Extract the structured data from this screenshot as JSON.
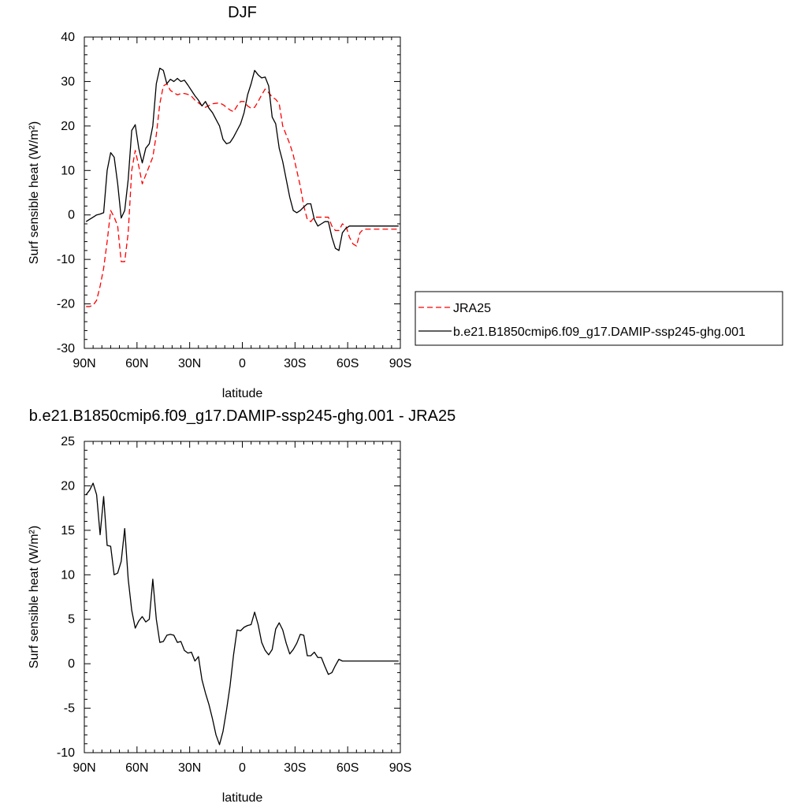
{
  "chart_data": [
    {
      "type": "line",
      "title": "DJF",
      "xlabel": "latitude",
      "ylabel": "Surf sensible heat (W/m²)",
      "xlim": [
        90,
        -90
      ],
      "ylim": [
        -30,
        40
      ],
      "x_ticks": [
        90,
        60,
        30,
        0,
        -30,
        -60,
        -90
      ],
      "x_tick_labels": [
        "90N",
        "60N",
        "30N",
        "0",
        "30S",
        "60S",
        "90S"
      ],
      "y_ticks": [
        -30,
        -20,
        -10,
        0,
        10,
        20,
        30,
        40
      ],
      "y_tick_labels": [
        "-30",
        "-20",
        "-10",
        "0",
        "10",
        "20",
        "30",
        "40"
      ],
      "legend_position": "right",
      "series": [
        {
          "name": "JRA25",
          "color": "#ff0000",
          "dash": "dashed",
          "x": [
            89,
            87,
            85,
            83,
            81,
            79,
            77,
            75,
            73,
            71,
            69,
            67,
            65,
            63,
            61,
            59,
            57,
            55,
            53,
            51,
            49,
            47,
            45,
            43,
            41,
            39,
            37,
            35,
            33,
            31,
            29,
            27,
            25,
            23,
            21,
            19,
            17,
            15,
            13,
            11,
            9,
            7,
            5,
            3,
            1,
            -1,
            -3,
            -5,
            -7,
            -9,
            -11,
            -13,
            -15,
            -17,
            -19,
            -21,
            -23,
            -25,
            -27,
            -29,
            -31,
            -33,
            -35,
            -37,
            -39,
            -41,
            -43,
            -45,
            -47,
            -49,
            -51,
            -53,
            -55,
            -57,
            -59,
            -61,
            -63,
            -65,
            -67,
            -69,
            -71,
            -73,
            -75,
            -77,
            -79,
            -81,
            -83,
            -85,
            -87,
            -89
          ],
          "y": [
            -20.6,
            -20.6,
            -20.3,
            -19.2,
            -16,
            -12,
            -6,
            1,
            -0.5,
            -2.5,
            -10.5,
            -10.5,
            -4,
            10,
            14.5,
            11,
            7,
            9,
            11,
            13,
            18,
            25,
            29,
            29.5,
            28,
            27.5,
            27,
            27.3,
            27.3,
            27.1,
            26.7,
            25.8,
            25.2,
            24.6,
            24.2,
            24.6,
            25,
            25.1,
            25.2,
            24.8,
            24.2,
            23.6,
            23.2,
            24.5,
            25.5,
            25.5,
            24.5,
            24,
            24.2,
            25.5,
            27,
            28.3,
            27.5,
            26.5,
            26,
            25,
            20,
            18,
            16,
            13.5,
            10,
            6.5,
            2,
            -1,
            -1.5,
            -0.5,
            -0.5,
            -0.5,
            -0.5,
            -0.5,
            -2.5,
            -3.5,
            -3.5,
            -2,
            -2.5,
            -5,
            -6.5,
            -7,
            -4,
            -3.2,
            -3.2,
            -3.2,
            -3.2,
            -3.2,
            -3.2,
            -3.2,
            -3.2,
            -3.2,
            -3.2,
            -3.2
          ]
        },
        {
          "name": "b.e21.B1850cmip6.f09_g17.DAMIP-ssp245-ghg.001",
          "color": "#000000",
          "dash": "solid",
          "x": [
            89,
            87,
            85,
            83,
            81,
            79,
            77,
            75,
            73,
            71,
            69,
            67,
            65,
            63,
            61,
            59,
            57,
            55,
            53,
            51,
            49,
            47,
            45,
            43,
            41,
            39,
            37,
            35,
            33,
            31,
            29,
            27,
            25,
            23,
            21,
            19,
            17,
            15,
            13,
            11,
            9,
            7,
            5,
            3,
            1,
            -1,
            -3,
            -5,
            -7,
            -9,
            -11,
            -13,
            -15,
            -17,
            -19,
            -21,
            -23,
            -25,
            -27,
            -29,
            -31,
            -33,
            -35,
            -37,
            -39,
            -41,
            -43,
            -45,
            -47,
            -49,
            -51,
            -53,
            -55,
            -57,
            -59,
            -61,
            -63,
            -65,
            -67,
            -69,
            -71,
            -73,
            -75,
            -77,
            -79,
            -81,
            -83,
            -85,
            -87,
            -89
          ],
          "y": [
            -1.5,
            -1,
            -0.5,
            0,
            0.2,
            0.5,
            10,
            14,
            13,
            7,
            -0.7,
            1,
            8,
            19,
            20.3,
            15,
            11.7,
            15,
            16,
            20,
            29.5,
            33,
            32.5,
            29.5,
            30.5,
            30,
            30.7,
            30,
            30.3,
            29.2,
            28,
            26.8,
            25.8,
            24.5,
            25.5,
            24,
            23,
            21.5,
            20,
            17,
            16,
            16.3,
            17.5,
            19,
            20.5,
            23,
            27,
            29.5,
            32.5,
            31.5,
            30.8,
            31,
            29,
            22,
            20.5,
            15,
            12,
            8,
            4,
            1,
            0.5,
            1,
            1.8,
            2.5,
            2.5,
            -1,
            -2.5,
            -2,
            -1.5,
            -1.5,
            -5,
            -7.5,
            -8,
            -4,
            -3,
            -2.5,
            -2.5,
            -2.5,
            -2.5,
            -2.5,
            -2.5,
            -2.5,
            -2.5,
            -2.5,
            -2.5,
            -2.5,
            -2.5,
            -2.5,
            -2.5,
            -2.5
          ]
        }
      ]
    },
    {
      "type": "line",
      "title": "b.e21.B1850cmip6.f09_g17.DAMIP-ssp245-ghg.001 - JRA25",
      "xlabel": "latitude",
      "ylabel": "Surf sensible heat (W/m²)",
      "xlim": [
        90,
        -90
      ],
      "ylim": [
        -10,
        25
      ],
      "x_ticks": [
        90,
        60,
        30,
        0,
        -30,
        -60,
        -90
      ],
      "x_tick_labels": [
        "90N",
        "60N",
        "30N",
        "0",
        "30S",
        "60S",
        "90S"
      ],
      "y_ticks": [
        -10,
        -5,
        0,
        5,
        10,
        15,
        20,
        25
      ],
      "y_tick_labels": [
        "-10",
        "-5",
        "0",
        "5",
        "10",
        "15",
        "20",
        "25"
      ],
      "series": [
        {
          "color": "#000000",
          "dash": "solid",
          "x": [
            89,
            87,
            85,
            83,
            81,
            79,
            77,
            75,
            73,
            71,
            69,
            67,
            65,
            63,
            61,
            59,
            57,
            55,
            53,
            51,
            49,
            47,
            45,
            43,
            41,
            39,
            37,
            35,
            33,
            31,
            29,
            27,
            25,
            23,
            21,
            19,
            17,
            15,
            13,
            11,
            9,
            7,
            5,
            3,
            1,
            -1,
            -3,
            -5,
            -7,
            -9,
            -11,
            -13,
            -15,
            -17,
            -19,
            -21,
            -23,
            -25,
            -27,
            -29,
            -31,
            -33,
            -35,
            -37,
            -39,
            -41,
            -43,
            -45,
            -47,
            -49,
            -51,
            -53,
            -55,
            -57,
            -59,
            -61,
            -63,
            -65,
            -67,
            -69,
            -71,
            -73,
            -75,
            -77,
            -79,
            -81,
            -83,
            -85,
            -87,
            -89
          ],
          "y": [
            19,
            19.5,
            20.3,
            19,
            14.5,
            18.8,
            13.3,
            13.2,
            10,
            10.2,
            11.5,
            15.2,
            9.5,
            6,
            4,
            4.8,
            5.3,
            4.7,
            5,
            9.5,
            5,
            2.4,
            2.5,
            3.2,
            3.3,
            3.2,
            2.4,
            2.5,
            1.5,
            1.2,
            1.3,
            0.3,
            0.8,
            -1.8,
            -3.3,
            -4.6,
            -6.2,
            -8,
            -9.1,
            -7.6,
            -5.2,
            -2.5,
            1,
            3.8,
            3.7,
            4.1,
            4.3,
            4.4,
            5.8,
            4.4,
            2.4,
            1.5,
            1,
            1.6,
            3.9,
            4.6,
            3.8,
            2.3,
            1.1,
            1.6,
            2.3,
            3.3,
            3.2,
            0.9,
            0.9,
            1.3,
            0.7,
            0.7,
            -0.3,
            -1.2,
            -1,
            -0.2,
            0.5,
            0.3,
            0.3,
            0.3,
            0.3,
            0.3,
            0.3,
            0.3,
            0.3,
            0.3,
            0.3,
            0.3,
            0.3,
            0.3,
            0.3,
            0.3,
            0.3,
            0.3
          ]
        }
      ]
    }
  ]
}
